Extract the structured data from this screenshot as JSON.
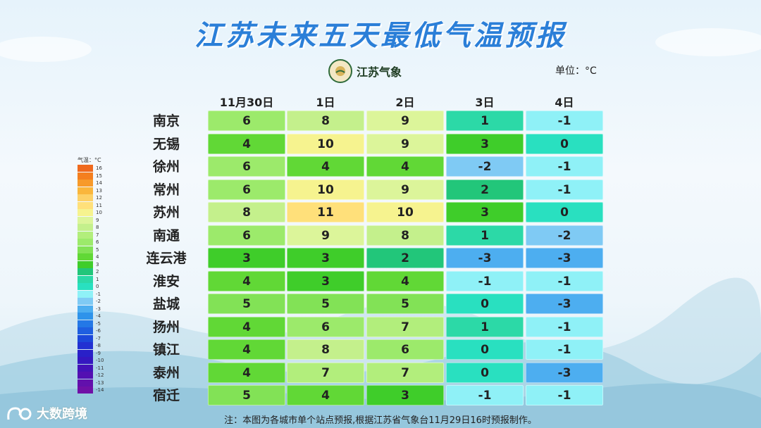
{
  "title": "江苏未来五天最低气温预报",
  "logo": {
    "text": "江苏气象"
  },
  "unit": "单位：°C",
  "dates": [
    "11月30日",
    "1日",
    "2日",
    "3日",
    "4日"
  ],
  "rows": [
    {
      "city": "南京",
      "values": [
        "6",
        "8",
        "9",
        "1",
        "-1"
      ]
    },
    {
      "city": "无锡",
      "values": [
        "4",
        "10",
        "9",
        "3",
        "0"
      ]
    },
    {
      "city": "徐州",
      "values": [
        "6",
        "4",
        "4",
        "-2",
        "-1"
      ]
    },
    {
      "city": "常州",
      "values": [
        "6",
        "10",
        "9",
        "2",
        "-1"
      ]
    },
    {
      "city": "苏州",
      "values": [
        "8",
        "11",
        "10",
        "3",
        "0"
      ]
    },
    {
      "city": "南通",
      "values": [
        "6",
        "9",
        "8",
        "1",
        "-2"
      ]
    },
    {
      "city": "连云港",
      "values": [
        "3",
        "3",
        "2",
        "-3",
        "-3"
      ]
    },
    {
      "city": "淮安",
      "values": [
        "4",
        "3",
        "4",
        "-1",
        "-1"
      ]
    },
    {
      "city": "盐城",
      "values": [
        "5",
        "5",
        "5",
        "0",
        "-3"
      ]
    },
    {
      "city": "扬州",
      "values": [
        "4",
        "6",
        "7",
        "1",
        "-1"
      ]
    },
    {
      "city": "镇江",
      "values": [
        "4",
        "8",
        "6",
        "0",
        "-1"
      ]
    },
    {
      "city": "泰州",
      "values": [
        "4",
        "7",
        "7",
        "0",
        "-3"
      ]
    },
    {
      "city": "宿迁",
      "values": [
        "5",
        "4",
        "3",
        "-1",
        "-1"
      ]
    }
  ],
  "legend": {
    "title": "气温：°C",
    "labels": [
      "16",
      "15",
      "14",
      "13",
      "12",
      "11",
      "10",
      "9",
      "8",
      "7",
      "6",
      "5",
      "4",
      "3",
      "2",
      "1",
      "0",
      "-1",
      "-2",
      "-3",
      "-4",
      "-5",
      "-6",
      "-7",
      "-8",
      "-9",
      "-10",
      "-11",
      "-12",
      "-13",
      "-14"
    ]
  },
  "colors": {
    "16": "#ef6a1e",
    "15": "#f47f1f",
    "14": "#f79a2a",
    "13": "#fab63c",
    "12": "#fdd167",
    "11": "#ffe07a",
    "10": "#f6f38f",
    "9": "#dcf59a",
    "8": "#c4f08c",
    "7": "#b2ee7c",
    "6": "#9cea6b",
    "5": "#82e256",
    "4": "#61d836",
    "3": "#3fcd2a",
    "2": "#22c67a",
    "1": "#2cd9a7",
    "0": "#29e0c0",
    "-1": "#8ff1f7",
    "-2": "#7fcaf4",
    "-3": "#4daef0",
    "-4": "#2e93ea",
    "-5": "#2478e6",
    "-6": "#1f5fe0",
    "-7": "#1c48da",
    "-8": "#2231d2",
    "-9": "#2920c8",
    "-10": "#3517c0",
    "-11": "#4412b8",
    "-12": "#5310b2",
    "-13": "#6210ac",
    "-14": "#7010a6"
  },
  "footnote": "注：本图为各城市单个站点预报,根据江苏省气象台11月29日16时预报制作。",
  "watermark": "大数跨境"
}
